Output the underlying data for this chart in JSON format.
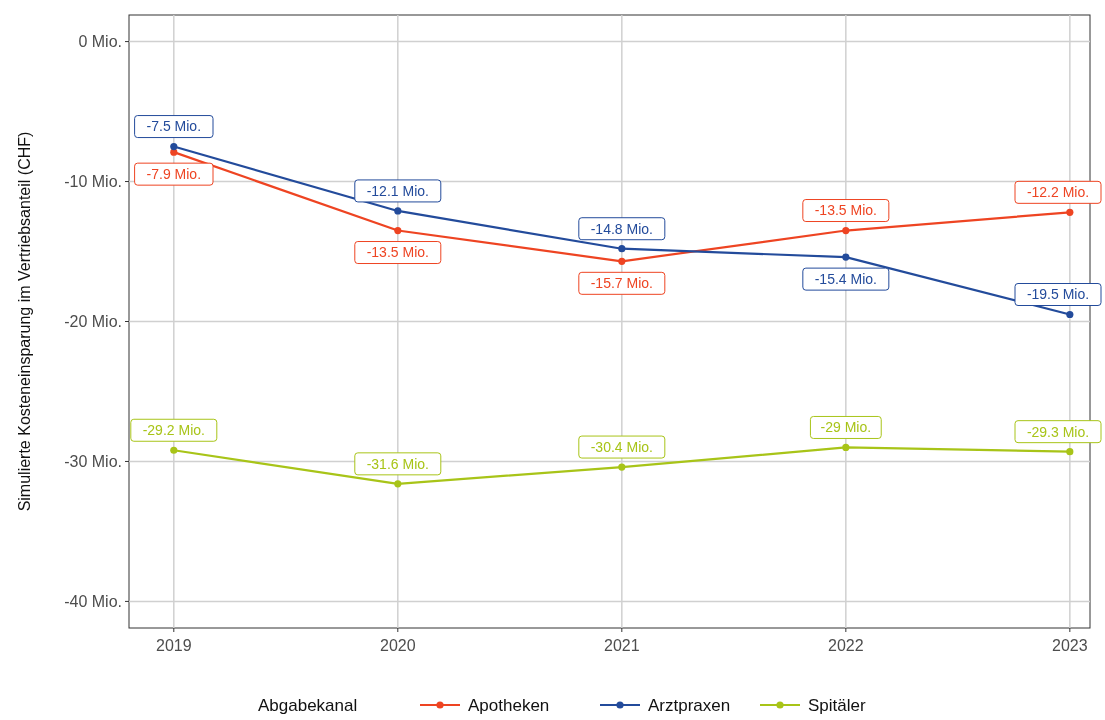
{
  "chart_data": {
    "type": "line",
    "ylabel": "Simulierte Kosteneinsparung im Vertriebsanteil (CHF)",
    "legend_title": "Abgabekanal",
    "legend": "bottom",
    "grid": true,
    "marker": "circle",
    "line_style": "solid",
    "x": [
      2019,
      2020,
      2021,
      2022,
      2023
    ],
    "xlim": [
      2018.8,
      2023.09
    ],
    "xticks": [
      2019,
      2020,
      2021,
      2022,
      2023
    ],
    "ylim": [
      -41.9,
      1.9
    ],
    "yticks": [
      {
        "value": 0,
        "label": "0 Mio."
      },
      {
        "value": -10,
        "label": "-10 Mio."
      },
      {
        "value": -20,
        "label": "-20 Mio."
      },
      {
        "value": -30,
        "label": "-30 Mio."
      },
      {
        "value": -40,
        "label": "-40 Mio."
      }
    ],
    "series": [
      {
        "name": "Apotheken",
        "color": "#ee4422",
        "values": [
          -7.9,
          -13.5,
          -15.7,
          -13.5,
          -12.2
        ],
        "value_labels": [
          "-7.9 Mio.",
          "-13.5 Mio.",
          "-15.7 Mio.",
          "-13.5 Mio.",
          "-12.2 Mio."
        ]
      },
      {
        "name": "Arztpraxen",
        "color": "#234b9b",
        "values": [
          -7.5,
          -12.1,
          -14.8,
          -15.4,
          -19.5
        ],
        "value_labels": [
          "-7.5 Mio.",
          "-12.1 Mio.",
          "-14.8 Mio.",
          "-15.4 Mio.",
          "-19.5 Mio."
        ]
      },
      {
        "name": "Spitäler",
        "color": "#a8c418",
        "values": [
          -29.2,
          -31.6,
          -30.4,
          -29,
          -29.3
        ],
        "value_labels": [
          "-29.2 Mio.",
          "-31.6 Mio.",
          "-30.4 Mio.",
          "-29 Mio.",
          "-29.3 Mio."
        ]
      }
    ]
  }
}
